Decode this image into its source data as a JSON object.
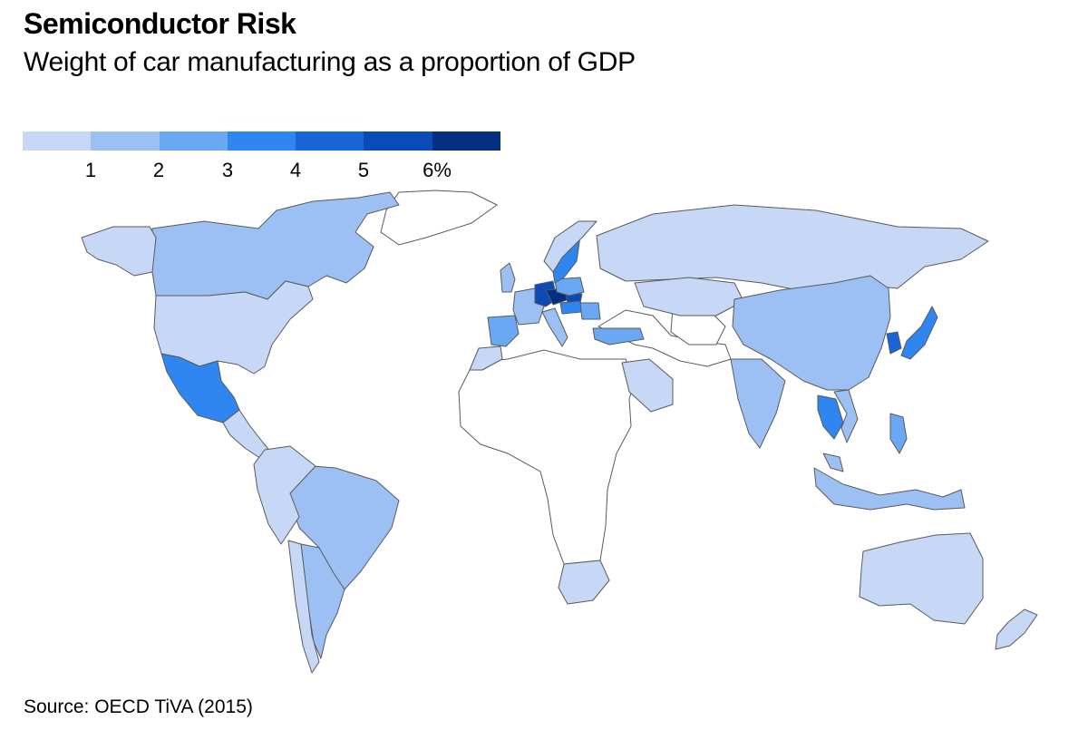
{
  "title": "Semiconductor Risk",
  "subtitle": "Weight of car manufacturing as a proportion of GDP",
  "source": "Source: OECD TiVA (2015)",
  "legend": {
    "colors": [
      "#c6d8f6",
      "#9cc0f4",
      "#6aa8f4",
      "#2f86f0",
      "#1765d8",
      "#0a4bb8",
      "#052f80"
    ],
    "ticks": [
      "1",
      "2",
      "3",
      "4",
      "5",
      "6%"
    ]
  },
  "map": {
    "colors": {
      "no_data": "#ffffff",
      "border": "#5a5a5a",
      "ocean": "#ffffff"
    },
    "regions": [
      {
        "name": "Canada",
        "bin": 1
      },
      {
        "name": "Alaska",
        "bin": 0
      },
      {
        "name": "United States",
        "bin": 0
      },
      {
        "name": "Mexico",
        "bin": 3
      },
      {
        "name": "Central America",
        "bin": 0
      },
      {
        "name": "Brazil",
        "bin": 1
      },
      {
        "name": "Argentina",
        "bin": 1
      },
      {
        "name": "Chile",
        "bin": 0
      },
      {
        "name": "Western South America",
        "bin": 0
      },
      {
        "name": "Iberia",
        "bin": 2
      },
      {
        "name": "France",
        "bin": 1
      },
      {
        "name": "United Kingdom",
        "bin": 1
      },
      {
        "name": "Germany",
        "bin": 5
      },
      {
        "name": "Czechia",
        "bin": 6
      },
      {
        "name": "Slovakia",
        "bin": 5
      },
      {
        "name": "Hungary",
        "bin": 3
      },
      {
        "name": "Romania",
        "bin": 2
      },
      {
        "name": "Poland",
        "bin": 2
      },
      {
        "name": "Sweden",
        "bin": 3
      },
      {
        "name": "Norway",
        "bin": 0
      },
      {
        "name": "Italy",
        "bin": 1
      },
      {
        "name": "Turkey",
        "bin": 2
      },
      {
        "name": "Russia",
        "bin": 0
      },
      {
        "name": "Kazakhstan",
        "bin": 0
      },
      {
        "name": "China",
        "bin": 1
      },
      {
        "name": "India",
        "bin": 1
      },
      {
        "name": "Saudi Arabia",
        "bin": 0
      },
      {
        "name": "Morocco",
        "bin": 0
      },
      {
        "name": "South Africa",
        "bin": 0
      },
      {
        "name": "Japan",
        "bin": 3
      },
      {
        "name": "South Korea",
        "bin": 4
      },
      {
        "name": "Thailand",
        "bin": 3
      },
      {
        "name": "Vietnam",
        "bin": 1
      },
      {
        "name": "Malaysia",
        "bin": 1
      },
      {
        "name": "Philippines",
        "bin": 2
      },
      {
        "name": "Indonesia",
        "bin": 1
      },
      {
        "name": "Australia",
        "bin": 0
      },
      {
        "name": "New Zealand",
        "bin": 0
      }
    ]
  }
}
